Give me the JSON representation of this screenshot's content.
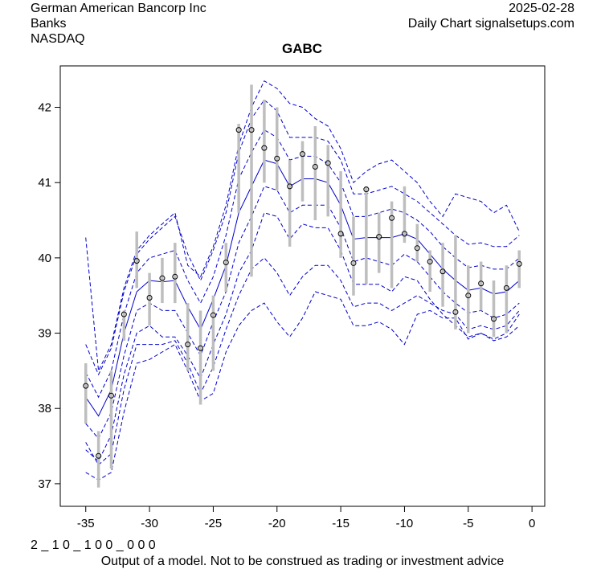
{
  "header": {
    "company": "German American Bancorp Inc",
    "sector": "Banks",
    "exchange": "NASDAQ",
    "date": "2025-02-28",
    "source": "Daily Chart signalsetups.com"
  },
  "footer": {
    "code": "2 _ 1 0 _ 1 0 0 _ 0 0 0",
    "disclaimer": "Output of a model. Not to be construed as trading or investment advice"
  },
  "chart_data": {
    "type": "line",
    "title": "GABC",
    "xlabel": "",
    "ylabel": "",
    "xlim": [
      -37,
      1
    ],
    "ylim": [
      36.7,
      42.55
    ],
    "x_ticks": [
      -35,
      -30,
      -25,
      -20,
      -15,
      -10,
      -5,
      0
    ],
    "y_ticks": [
      37,
      38,
      39,
      40,
      41,
      42
    ],
    "grid": false,
    "x": [
      -35,
      -34,
      -33,
      -32,
      -31,
      -30,
      -29,
      -28,
      -27,
      -26,
      -25,
      -24,
      -23,
      -22,
      -21,
      -20,
      -19,
      -18,
      -17,
      -16,
      -15,
      -14,
      -13,
      -12,
      -11,
      -10,
      -9,
      -8,
      -7,
      -6,
      -5,
      -4,
      -3,
      -2,
      -1
    ],
    "close": [
      38.3,
      37.37,
      38.17,
      39.25,
      39.96,
      39.47,
      39.73,
      39.75,
      38.85,
      38.8,
      39.24,
      39.94,
      41.7,
      41.7,
      41.46,
      41.32,
      40.95,
      41.38,
      41.21,
      41.26,
      40.32,
      39.93,
      40.91,
      40.28,
      40.53,
      40.32,
      40.13,
      39.95,
      39.82,
      39.28,
      39.5,
      39.66,
      39.19,
      39.6,
      39.92
    ],
    "range_high": [
      38.6,
      37.7,
      38.5,
      39.3,
      40.35,
      39.8,
      40.0,
      40.2,
      39.4,
      39.3,
      39.5,
      40.2,
      41.78,
      42.3,
      42.1,
      42.0,
      41.3,
      41.55,
      41.75,
      41.5,
      41.15,
      40.55,
      40.95,
      40.6,
      40.75,
      40.95,
      40.45,
      40.1,
      40.2,
      40.3,
      39.9,
      39.95,
      39.7,
      39.9,
      40.1
    ],
    "range_low": [
      37.8,
      36.95,
      37.2,
      38.9,
      39.6,
      39.1,
      39.4,
      39.4,
      38.5,
      38.05,
      38.5,
      39.55,
      40.6,
      39.75,
      41.0,
      40.9,
      40.15,
      40.75,
      40.5,
      40.55,
      40.0,
      39.5,
      39.65,
      39.8,
      39.6,
      40.2,
      39.95,
      39.55,
      39.35,
      39.05,
      39.0,
      39.3,
      38.95,
      39.0,
      39.6
    ],
    "series": [
      {
        "style": "solid",
        "values": [
          38.15,
          37.9,
          38.25,
          39.0,
          39.55,
          39.7,
          39.68,
          39.7,
          39.35,
          39.05,
          39.45,
          39.9,
          40.6,
          40.95,
          41.3,
          41.25,
          40.95,
          41.05,
          41.05,
          41.0,
          40.7,
          40.25,
          40.27,
          40.27,
          40.27,
          40.32,
          40.25,
          40.05,
          39.85,
          39.7,
          39.57,
          39.6,
          39.52,
          39.55,
          39.7
        ]
      },
      {
        "style": "dashed",
        "values": [
          38.48,
          38.15,
          38.5,
          39.25,
          39.8,
          40.0,
          40.05,
          40.1,
          39.7,
          39.4,
          39.75,
          40.3,
          41.05,
          41.4,
          41.7,
          41.6,
          41.3,
          41.35,
          41.35,
          41.25,
          41.0,
          40.55,
          40.55,
          40.6,
          40.65,
          40.6,
          40.5,
          40.35,
          40.15,
          40.0,
          39.87,
          39.9,
          39.85,
          39.85,
          40.0
        ]
      },
      {
        "style": "dashed",
        "values": [
          38.85,
          38.45,
          38.8,
          39.55,
          40.05,
          40.25,
          40.4,
          40.55,
          40.05,
          39.7,
          40.1,
          40.6,
          41.4,
          41.85,
          42.1,
          41.95,
          41.6,
          41.6,
          41.6,
          41.55,
          41.3,
          40.85,
          40.85,
          40.9,
          40.95,
          40.85,
          40.75,
          40.6,
          40.45,
          40.3,
          40.18,
          40.2,
          40.15,
          40.15,
          40.3
        ]
      },
      {
        "style": "dashed",
        "values": [
          40.27,
          38.5,
          38.85,
          39.6,
          40.1,
          40.3,
          40.45,
          40.6,
          39.9,
          39.75,
          40.15,
          40.7,
          41.5,
          42.0,
          42.35,
          42.25,
          42.05,
          42.0,
          41.85,
          41.75,
          41.45,
          41.0,
          41.15,
          41.25,
          41.3,
          41.15,
          41.0,
          40.75,
          40.55,
          40.85,
          40.8,
          40.75,
          40.6,
          40.7,
          40.35
        ]
      },
      {
        "style": "dashed",
        "values": [
          37.8,
          37.6,
          37.95,
          38.7,
          39.3,
          39.4,
          39.3,
          39.3,
          39.0,
          38.7,
          39.15,
          39.55,
          40.2,
          40.55,
          40.95,
          40.9,
          40.6,
          40.7,
          40.7,
          40.7,
          40.4,
          39.95,
          40.0,
          39.95,
          39.9,
          40.05,
          39.95,
          39.75,
          39.55,
          39.4,
          39.27,
          39.3,
          39.2,
          39.25,
          39.4
        ]
      },
      {
        "style": "dashed",
        "values": [
          37.45,
          37.3,
          37.65,
          38.45,
          39.0,
          39.1,
          38.95,
          38.95,
          38.7,
          38.4,
          38.85,
          39.25,
          39.8,
          40.1,
          40.6,
          40.55,
          40.25,
          40.45,
          40.4,
          40.4,
          40.1,
          39.65,
          39.65,
          39.65,
          39.55,
          39.75,
          39.7,
          39.45,
          39.25,
          39.1,
          38.95,
          39.0,
          38.9,
          38.95,
          39.1
        ]
      },
      {
        "style": "dashed",
        "values": [
          37.15,
          37.05,
          37.15,
          37.95,
          38.6,
          38.65,
          38.75,
          38.85,
          38.5,
          38.1,
          38.2,
          38.75,
          39.1,
          39.3,
          39.4,
          39.15,
          38.95,
          39.2,
          39.55,
          39.5,
          39.45,
          39.1,
          39.1,
          39.15,
          39.05,
          38.85,
          39.25,
          39.3,
          39.2,
          39.2,
          38.92,
          39.0,
          38.92,
          39.0,
          39.25
        ]
      },
      {
        "style": "dashed",
        "values": [
          37.55,
          37.25,
          37.4,
          38.25,
          38.85,
          38.85,
          38.85,
          38.9,
          38.6,
          38.2,
          38.55,
          39.05,
          39.5,
          39.85,
          40.0,
          39.8,
          39.5,
          39.75,
          39.9,
          39.9,
          39.7,
          39.35,
          39.4,
          39.4,
          39.3,
          39.4,
          39.5,
          39.4,
          39.3,
          39.25,
          39.05,
          39.1,
          39.05,
          39.1,
          39.3
        ]
      }
    ],
    "colors": {
      "band": "#0000cc",
      "range": "#bebebe",
      "point": "#000000"
    }
  }
}
